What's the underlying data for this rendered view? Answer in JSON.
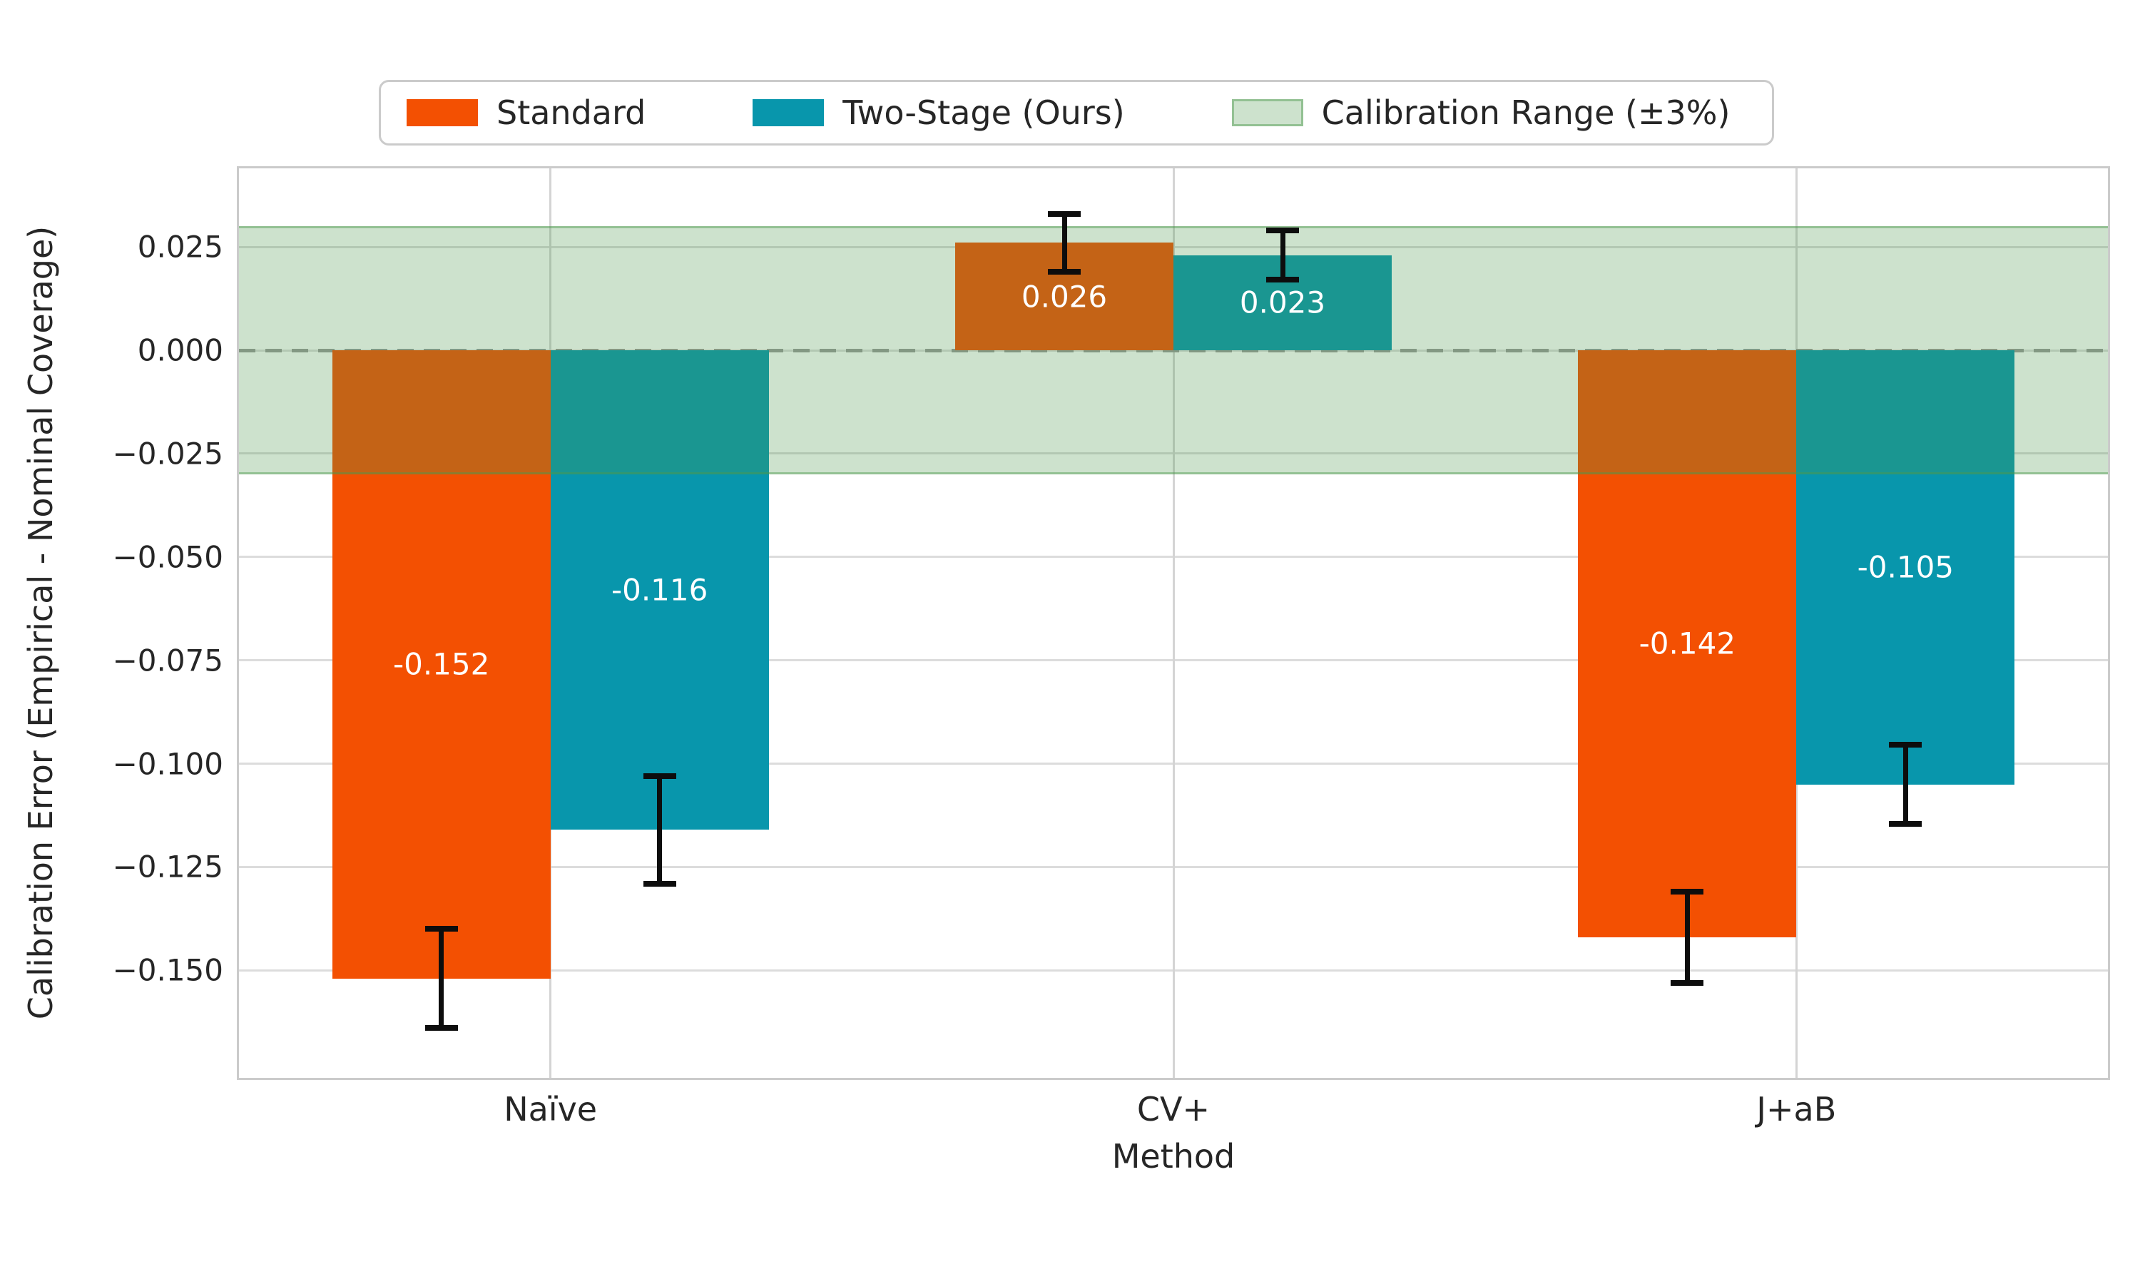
{
  "chart_data": {
    "type": "bar",
    "categories": [
      "Naïve",
      "CV+",
      "J+aB"
    ],
    "series": [
      {
        "name": "Standard",
        "color": "#f35002",
        "values": [
          -0.152,
          0.026,
          -0.142
        ],
        "errors": [
          0.012,
          0.007,
          0.011
        ],
        "value_labels": [
          "-0.152",
          "0.026",
          "-0.142"
        ]
      },
      {
        "name": "Two-Stage (Ours)",
        "color": "#0896ac",
        "values": [
          -0.116,
          0.023,
          -0.105
        ],
        "errors": [
          0.013,
          0.006,
          0.0095
        ],
        "value_labels": [
          "-0.116",
          "0.023",
          "-0.105"
        ]
      }
    ],
    "band": {
      "label": "Calibration Range (±3%)",
      "from": -0.03,
      "to": 0.03,
      "fill_color": "rgba(77,152,77,0.28)",
      "edge_color": "rgba(77,152,77,0.45)"
    },
    "zero_line": {
      "value": 0.0,
      "color": "#999999",
      "style": "dashed"
    },
    "xlabel": "Method",
    "ylabel": "Calibration Error (Empirical - Nominal Coverage)",
    "ylim": [
      -0.176,
      0.044
    ],
    "yticks": [
      0.025,
      0.0,
      -0.025,
      -0.05,
      -0.075,
      -0.1,
      -0.125,
      -0.15
    ],
    "ytick_labels": [
      "0.025",
      "0.000",
      "−0.025",
      "−0.050",
      "−0.075",
      "−0.100",
      "−0.125",
      "−0.150"
    ],
    "grid": true,
    "legend_position": "top center",
    "error_bar_color": "#0d0d0d",
    "bar_label_color": "#ffffff"
  }
}
